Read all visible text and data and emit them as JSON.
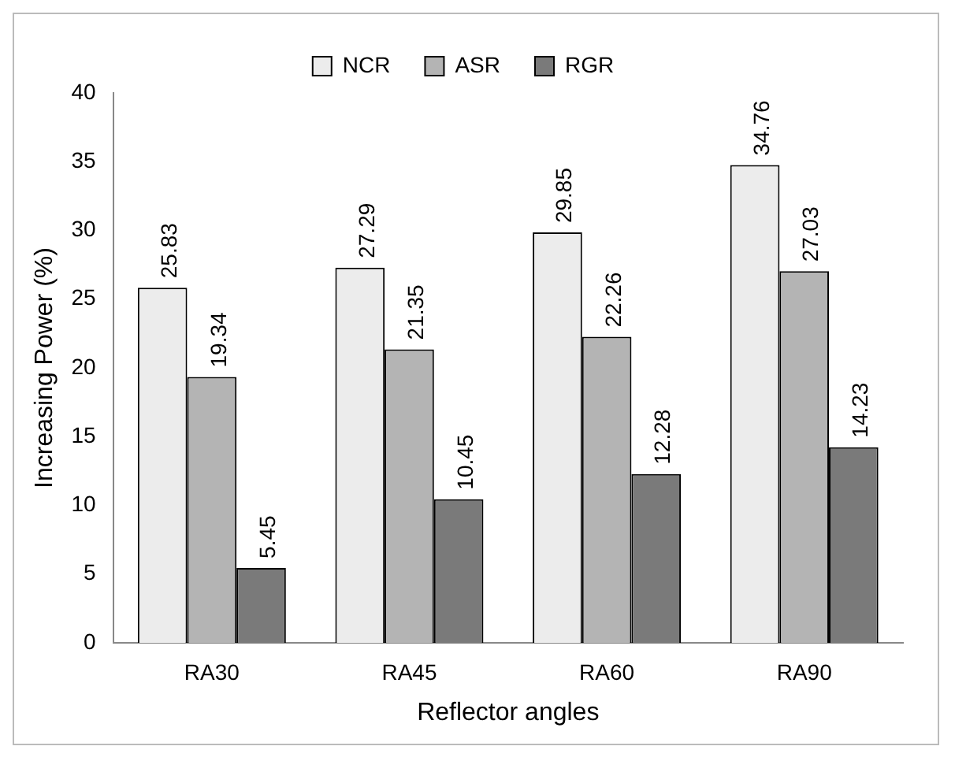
{
  "chart_data": {
    "type": "bar",
    "xlabel": "Reflector angles",
    "ylabel": "Increasing Power (%)",
    "categories": [
      "RA30",
      "RA45",
      "RA60",
      "RA90"
    ],
    "series": [
      {
        "name": "NCR",
        "color": "#ececec",
        "values": [
          25.83,
          27.29,
          29.85,
          34.76
        ]
      },
      {
        "name": "ASR",
        "color": "#b4b4b4",
        "values": [
          19.34,
          21.35,
          22.26,
          27.03
        ]
      },
      {
        "name": "RGR",
        "color": "#7a7a7a",
        "values": [
          5.45,
          10.45,
          12.28,
          14.23
        ]
      }
    ],
    "ylim": [
      0,
      40
    ],
    "yticks": [
      0,
      5,
      10,
      15,
      20,
      25,
      30,
      35,
      40
    ],
    "grid": false,
    "legend": "top",
    "data_labels": true
  }
}
